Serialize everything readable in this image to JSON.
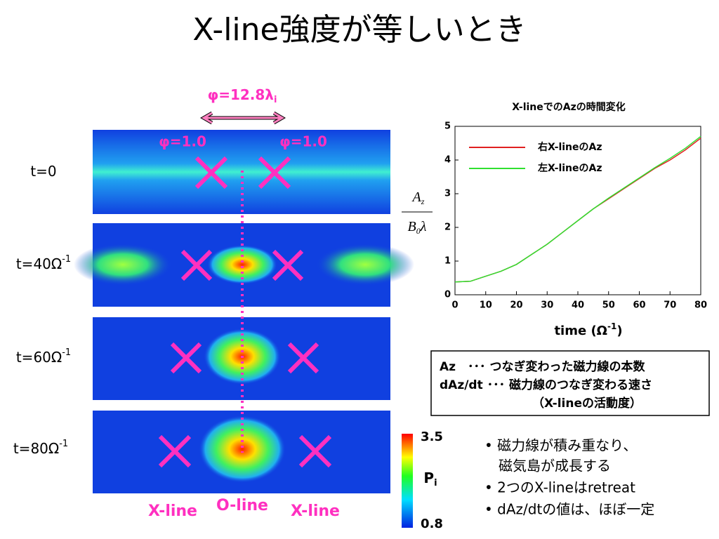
{
  "title": "X-line強度が等しいとき",
  "panels": [
    {
      "label": "t=0",
      "sup": null
    },
    {
      "label": "t=40Ω",
      "sup": "-1"
    },
    {
      "label": "t=60Ω",
      "sup": "-1"
    },
    {
      "label": "t=80Ω",
      "sup": "-1"
    }
  ],
  "annotations": {
    "width": "φ=12.8λ",
    "width_sub": "i",
    "left": "φ=1.0",
    "right": "φ=1.0",
    "bottom": [
      "X-line",
      "O-line",
      "X-line"
    ]
  },
  "colorbar": {
    "max": "3.5",
    "label": "P",
    "label_sub": "i",
    "min": "0.8"
  },
  "chart_data": {
    "type": "line",
    "title": "X-lineでのAzの時間変化",
    "ylabel": {
      "num": "A",
      "num_sub": "z",
      "den": "B",
      "den_sub": "0",
      "den_end": "λ"
    },
    "xlabel": {
      "text": "time (Ω",
      "sup": "-1",
      "end": ")"
    },
    "x": [
      0,
      5,
      10,
      15,
      20,
      25,
      30,
      35,
      40,
      45,
      50,
      55,
      60,
      65,
      70,
      75,
      80
    ],
    "series": [
      {
        "name": "右X-lineのAz",
        "color": "#e02020",
        "values": [
          0.38,
          0.4,
          0.55,
          0.7,
          0.9,
          1.2,
          1.5,
          1.85,
          2.2,
          2.55,
          2.85,
          3.15,
          3.45,
          3.75,
          4.0,
          4.3,
          4.65
        ]
      },
      {
        "name": "左X-lineのAz",
        "color": "#30e030",
        "values": [
          0.38,
          0.4,
          0.55,
          0.7,
          0.9,
          1.2,
          1.5,
          1.85,
          2.2,
          2.55,
          2.87,
          3.17,
          3.47,
          3.77,
          4.05,
          4.35,
          4.7
        ]
      }
    ],
    "xlim": [
      0,
      80
    ],
    "xticks": [
      0,
      10,
      20,
      30,
      40,
      50,
      60,
      70,
      80
    ],
    "ylim": [
      0,
      5
    ],
    "yticks": [
      0,
      1,
      2,
      3,
      4,
      5
    ]
  },
  "box": [
    "Az　･･･ つなぎ変わった磁力線の本数",
    "dAz/dt ･･･ 磁力線のつなぎ変わる速さ",
    "（X-lineの活動度）"
  ],
  "bullets": [
    "• 磁力線が積み重なり、",
    "　磁気島が成長する",
    "• 2つのX-lineはretreat",
    "• dAz/dtの値は、ほぼ一定"
  ]
}
